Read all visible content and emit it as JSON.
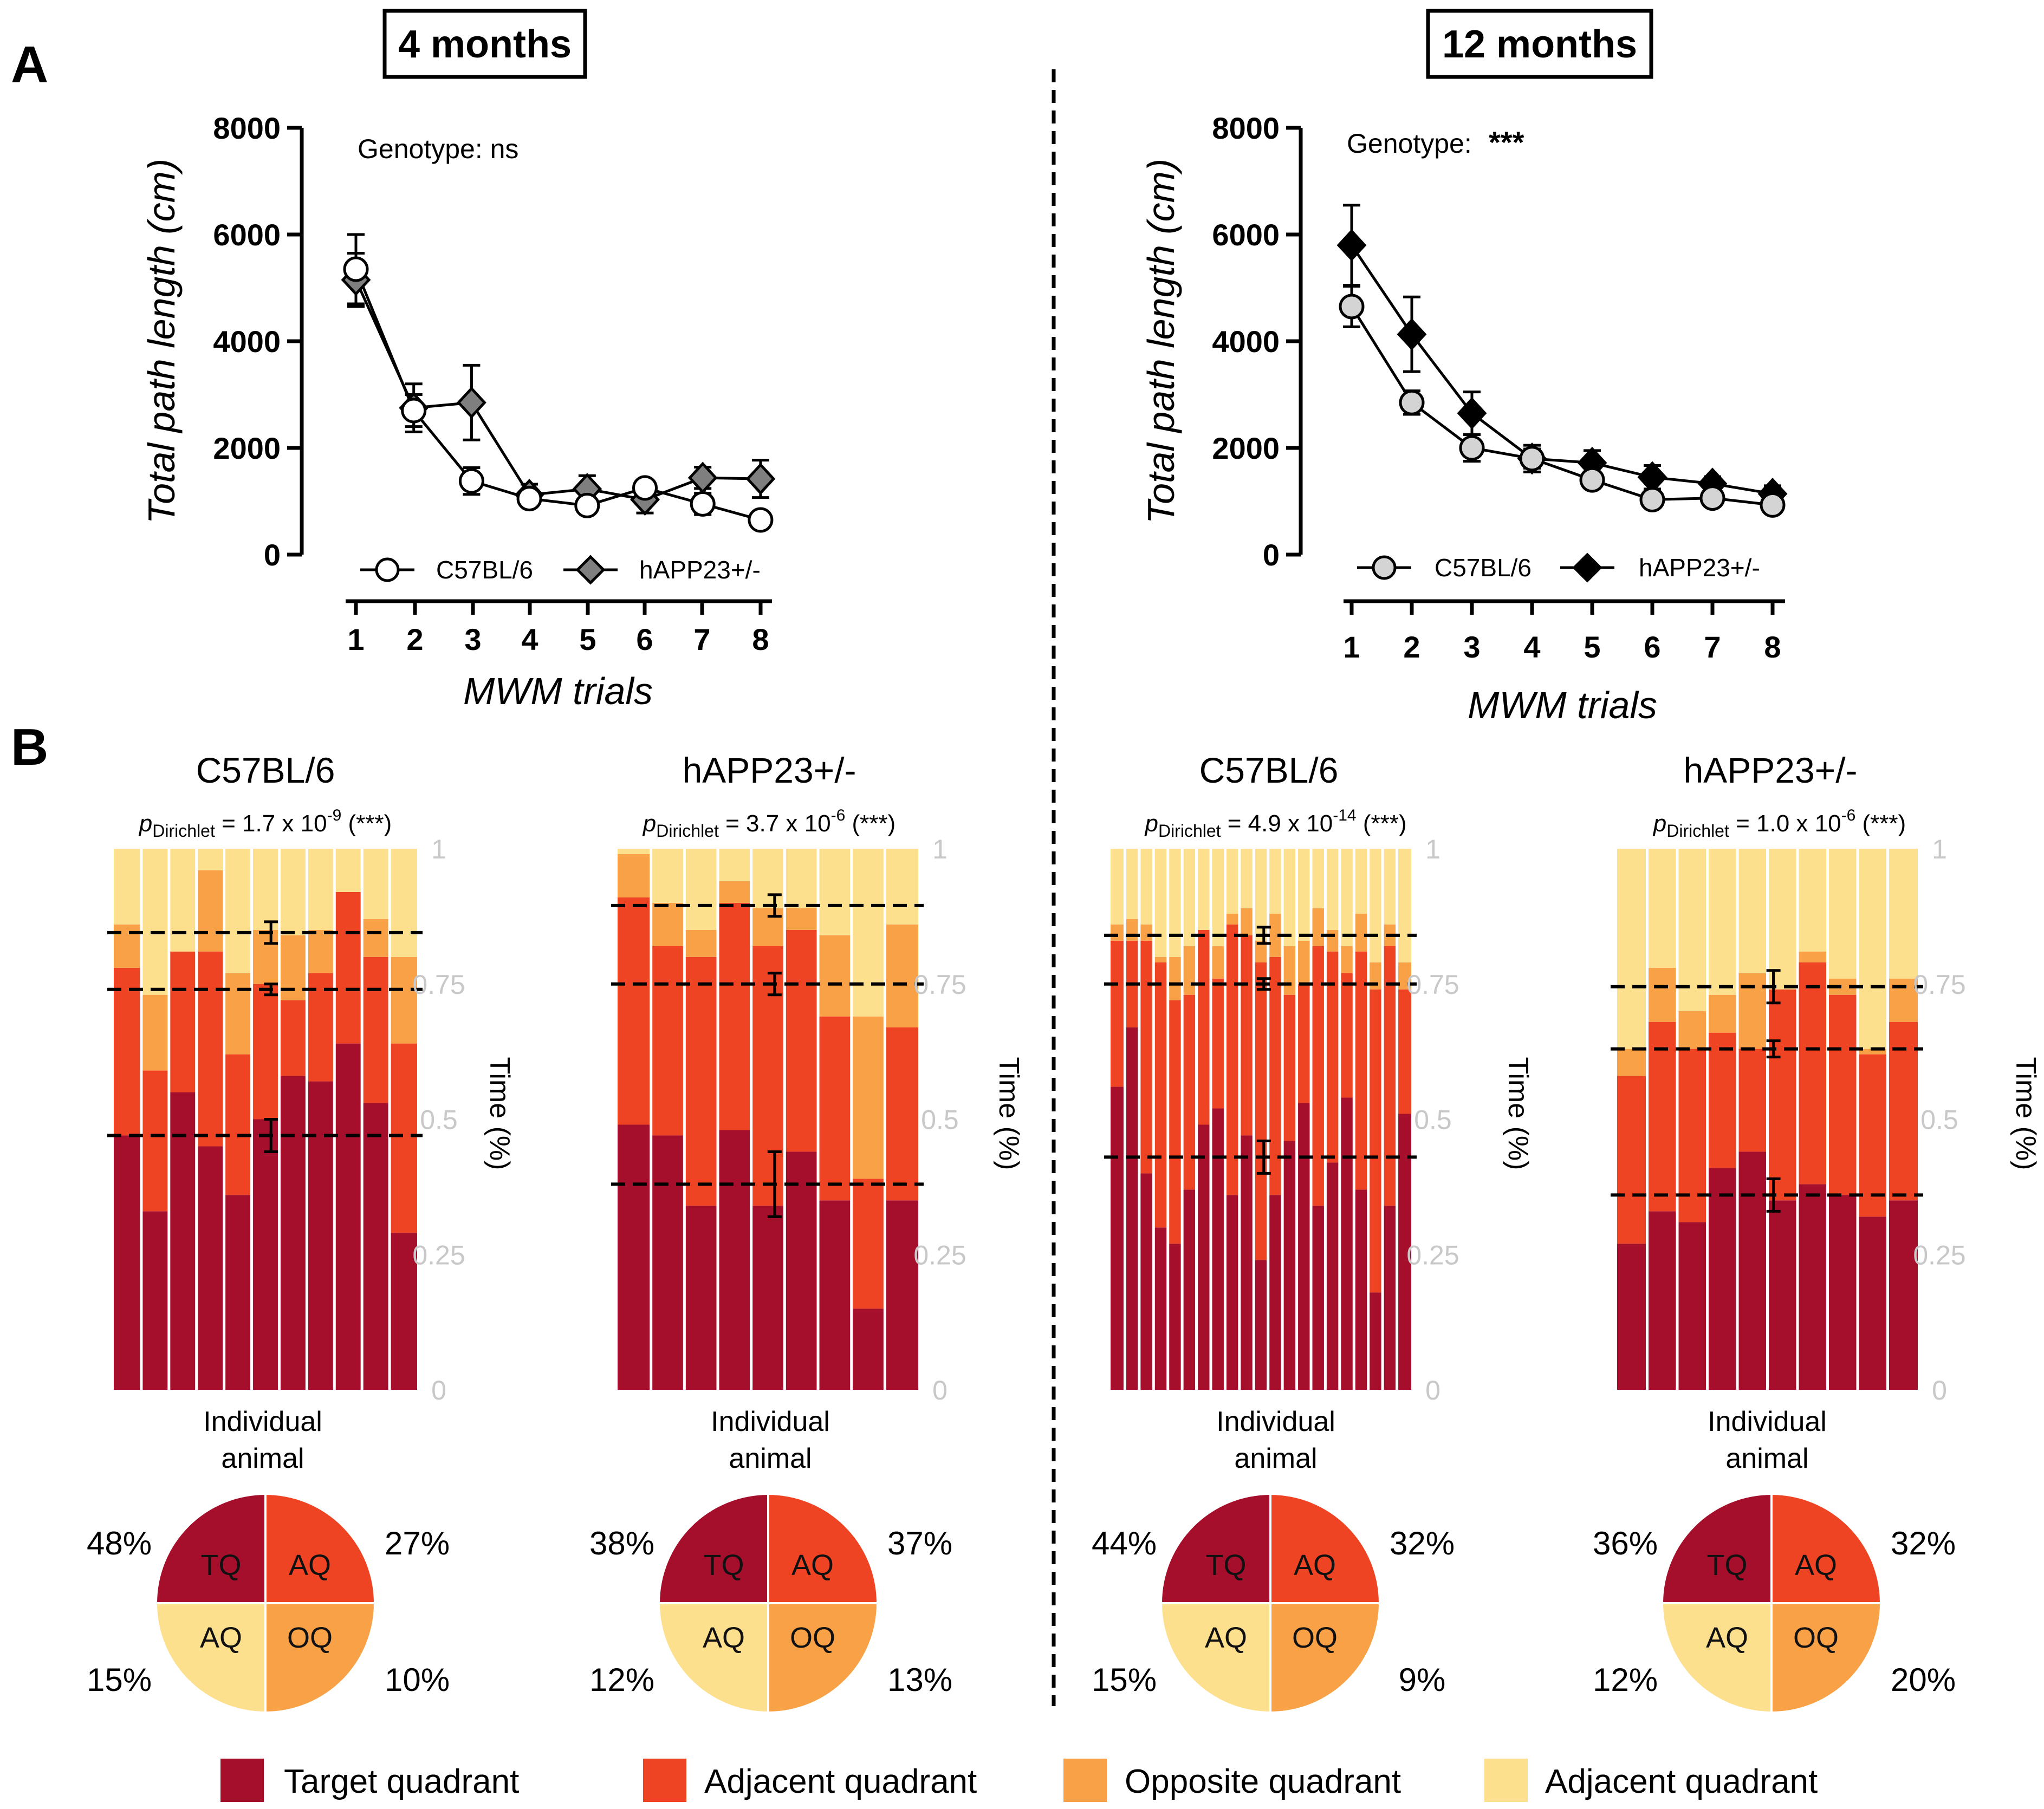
{
  "panel_labels": {
    "a": "A",
    "b": "B"
  },
  "colors": {
    "tq": "#a50f2b",
    "aq1": "#ef4423",
    "oq": "#f9a146",
    "aq2": "#fde08e",
    "grey_axis": "#c8c8c8"
  },
  "legend": {
    "items": [
      {
        "label": "Target quadrant",
        "color": "#a50f2b"
      },
      {
        "label": "Adjacent quadrant",
        "color": "#ef4423"
      },
      {
        "label": "Opposite quadrant",
        "color": "#f9a146"
      },
      {
        "label": "Adjacent quadrant",
        "color": "#fde08e"
      }
    ]
  },
  "chart_data": [
    {
      "id": "A-4m",
      "type": "line",
      "box_title": "4 months",
      "annotation": {
        "text": "Genotype: ns",
        "stars": ""
      },
      "xlabel": "MWM trials",
      "ylabel": "Total path length (cm)",
      "x": [
        1,
        2,
        3,
        4,
        5,
        6,
        7,
        8
      ],
      "ylim": [
        0,
        8000
      ],
      "yticks": [
        0,
        2000,
        4000,
        6000,
        8000
      ],
      "series": [
        {
          "name": "C57BL/6",
          "marker": "circle",
          "fill": "#ffffff",
          "values": [
            5350,
            2700,
            1380,
            1050,
            920,
            1250,
            950,
            650
          ],
          "errors": [
            650,
            300,
            250,
            120,
            120,
            150,
            200,
            60
          ]
        },
        {
          "name": "hAPP23+/-",
          "marker": "diamond",
          "fill": "#7f7f7f",
          "values": [
            5150,
            2750,
            2850,
            1120,
            1230,
            1030,
            1440,
            1420
          ],
          "errors": [
            500,
            450,
            700,
            200,
            250,
            250,
            200,
            350
          ]
        }
      ]
    },
    {
      "id": "A-12m",
      "type": "line",
      "box_title": "12 months",
      "annotation": {
        "text": "Genotype:",
        "stars": "***"
      },
      "xlabel": "MWM trials",
      "ylabel": "Total path length (cm)",
      "x": [
        1,
        2,
        3,
        4,
        5,
        6,
        7,
        8
      ],
      "ylim": [
        0,
        8000
      ],
      "yticks": [
        0,
        2000,
        4000,
        6000,
        8000
      ],
      "series": [
        {
          "name": "C57BL/6",
          "marker": "circle",
          "fill": "#d4d4d4",
          "values": [
            4650,
            2850,
            2000,
            1800,
            1400,
            1030,
            1060,
            930
          ],
          "errors": [
            380,
            220,
            250,
            180,
            120,
            100,
            90,
            110
          ]
        },
        {
          "name": "hAPP23+/-",
          "marker": "diamond",
          "fill": "#000000",
          "values": [
            5800,
            4130,
            2650,
            1800,
            1720,
            1450,
            1330,
            1140
          ],
          "errors": [
            750,
            700,
            400,
            250,
            230,
            220,
            130,
            150
          ]
        }
      ]
    },
    {
      "id": "B1",
      "type": "bar",
      "stacked": true,
      "title": "C57BL/6",
      "p_sym": "p",
      "p_sub": "Dirichlet",
      "p_text": "= 1.7 x 10",
      "p_exp": "-9",
      "p_stars": "(***)",
      "xlabel_line1": "Individual",
      "xlabel_line2": "animal",
      "ylabel": "Time (%)",
      "ylim": [
        0,
        1
      ],
      "ytick_labels": [
        "0",
        "0.25",
        "0.5",
        "0.75",
        "1"
      ],
      "tq": [
        0.47,
        0.33,
        0.55,
        0.45,
        0.36,
        0.5,
        0.58,
        0.57,
        0.64,
        0.53,
        0.29
      ],
      "aq": [
        0.31,
        0.26,
        0.26,
        0.36,
        0.26,
        0.25,
        0.14,
        0.2,
        0.28,
        0.27,
        0.35
      ],
      "oq": [
        0.08,
        0.14,
        0.0,
        0.15,
        0.15,
        0.1,
        0.12,
        0.08,
        0.0,
        0.07,
        0.16
      ],
      "means": [
        {
          "y": 0.47,
          "err": 0.03
        },
        {
          "y": 0.74,
          "err": 0.01
        },
        {
          "y": 0.845,
          "err": 0.02
        }
      ],
      "pie": {
        "tq": "48%",
        "aq1": "27%",
        "aq2": "15%",
        "oq": "10%",
        "labels": {
          "tq": "TQ",
          "aq1": "AQ",
          "aq2": "AQ",
          "oq": "OQ"
        }
      }
    },
    {
      "id": "B2",
      "type": "bar",
      "stacked": true,
      "title": "hAPP23+/-",
      "p_sym": "p",
      "p_sub": "Dirichlet",
      "p_text": "= 3.7 x 10",
      "p_exp": "-6",
      "p_stars": "(***)",
      "xlabel_line1": "Individual",
      "xlabel_line2": "animal",
      "ylabel": "Time (%)",
      "ylim": [
        0,
        1
      ],
      "ytick_labels": [
        "0",
        "0.25",
        "0.5",
        "0.75",
        "1"
      ],
      "tq": [
        0.49,
        0.47,
        0.34,
        0.48,
        0.34,
        0.44,
        0.35,
        0.15,
        0.35
      ],
      "aq": [
        0.42,
        0.35,
        0.46,
        0.42,
        0.48,
        0.41,
        0.34,
        0.24,
        0.32
      ],
      "oq": [
        0.08,
        0.08,
        0.05,
        0.04,
        0.07,
        0.04,
        0.15,
        0.3,
        0.19
      ],
      "means": [
        {
          "y": 0.38,
          "err": 0.06
        },
        {
          "y": 0.75,
          "err": 0.02
        },
        {
          "y": 0.895,
          "err": 0.02
        }
      ],
      "pie": {
        "tq": "38%",
        "aq1": "37%",
        "aq2": "12%",
        "oq": "13%",
        "labels": {
          "tq": "TQ",
          "aq1": "AQ",
          "aq2": "AQ",
          "oq": "OQ"
        }
      }
    },
    {
      "id": "B3",
      "type": "bar",
      "stacked": true,
      "title": "C57BL/6",
      "p_sym": "p",
      "p_sub": "Dirichlet",
      "p_text": "= 4.9 x 10",
      "p_exp": "-14",
      "p_stars": "(***)",
      "xlabel_line1": "Individual",
      "xlabel_line2": "animal",
      "ylabel": "Time (%)",
      "ylim": [
        0,
        1
      ],
      "ytick_labels": [
        "0",
        "0.25",
        "0.5",
        "0.75",
        "1"
      ],
      "tq": [
        0.56,
        0.67,
        0.4,
        0.3,
        0.27,
        0.37,
        0.49,
        0.52,
        0.36,
        0.47,
        0.24,
        0.36,
        0.46,
        0.53,
        0.34,
        0.42,
        0.54,
        0.37,
        0.18,
        0.34,
        0.51
      ],
      "aq": [
        0.27,
        0.16,
        0.43,
        0.49,
        0.45,
        0.36,
        0.36,
        0.24,
        0.5,
        0.37,
        0.55,
        0.44,
        0.27,
        0.22,
        0.48,
        0.39,
        0.23,
        0.44,
        0.56,
        0.48,
        0.23
      ],
      "oq": [
        0.03,
        0.04,
        0.03,
        0.01,
        0.08,
        0.09,
        0.0,
        0.06,
        0.02,
        0.05,
        0.04,
        0.08,
        0.09,
        0.08,
        0.07,
        0.04,
        0.05,
        0.07,
        0.05,
        0.04,
        0.05
      ],
      "means": [
        {
          "y": 0.43,
          "err": 0.03
        },
        {
          "y": 0.75,
          "err": 0.01
        },
        {
          "y": 0.84,
          "err": 0.015
        }
      ],
      "pie": {
        "tq": "44%",
        "aq1": "32%",
        "aq2": "15%",
        "oq": "9%",
        "labels": {
          "tq": "TQ",
          "aq1": "AQ",
          "aq2": "AQ",
          "oq": "OQ"
        }
      }
    },
    {
      "id": "B4",
      "type": "bar",
      "stacked": true,
      "title": "hAPP23+/-",
      "p_sym": "p",
      "p_sub": "Dirichlet",
      "p_text": "= 1.0 x 10",
      "p_exp": "-6",
      "p_stars": "(***)",
      "xlabel_line1": "Individual",
      "xlabel_line2": "animal",
      "ylabel": "Time (%)",
      "ylim": [
        0,
        1
      ],
      "ytick_labels": [
        "0",
        "0.25",
        "0.5",
        "0.75",
        "1"
      ],
      "tq": [
        0.27,
        0.33,
        0.31,
        0.41,
        0.44,
        0.35,
        0.38,
        0.36,
        0.32,
        0.35
      ],
      "aq": [
        0.31,
        0.35,
        0.32,
        0.25,
        0.19,
        0.39,
        0.41,
        0.37,
        0.3,
        0.33
      ],
      "oq": [
        0.05,
        0.1,
        0.07,
        0.07,
        0.14,
        0.0,
        0.02,
        0.03,
        0.01,
        0.08
      ],
      "means": [
        {
          "y": 0.36,
          "err": 0.03
        },
        {
          "y": 0.63,
          "err": 0.015
        },
        {
          "y": 0.745,
          "err": 0.03
        }
      ],
      "pie": {
        "tq": "36%",
        "aq1": "32%",
        "aq2": "12%",
        "oq": "20%",
        "labels": {
          "tq": "TQ",
          "aq1": "AQ",
          "aq2": "AQ",
          "oq": "OQ"
        }
      }
    }
  ]
}
